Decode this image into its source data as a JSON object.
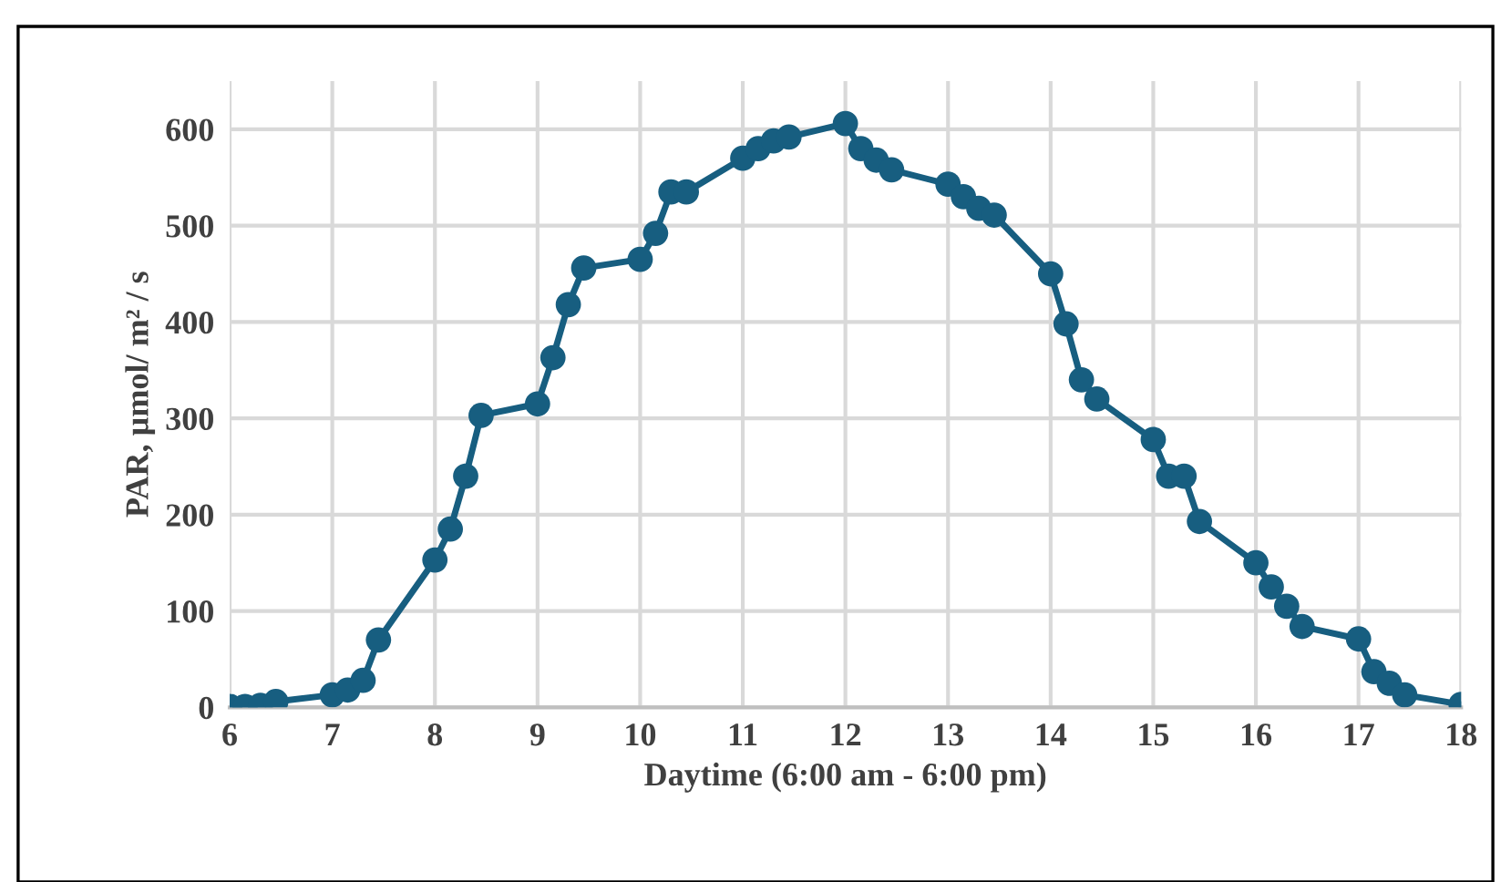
{
  "chart_data": {
    "type": "line",
    "xlabel": "Daytime (6:00 am - 6:00 pm)",
    "ylabel": "PAR, µmol/ m² / s",
    "series": [
      {
        "color": "#175e80",
        "x": [
          6,
          6.15,
          6.3,
          6.45,
          7,
          7.15,
          7.3,
          7.45,
          8,
          8.15,
          8.3,
          8.45,
          9,
          9.15,
          9.3,
          9.45,
          10,
          10.15,
          10.3,
          10.45,
          11,
          11.15,
          11.3,
          11.45,
          12,
          12.15,
          12.3,
          12.45,
          13,
          13.15,
          13.3,
          13.45,
          14,
          14.15,
          14.3,
          14.45,
          15,
          15.15,
          15.3,
          15.45,
          16,
          16.15,
          16.3,
          16.45,
          17,
          17.15,
          17.3,
          17.45,
          18
        ],
        "values": [
          1,
          1,
          2,
          6,
          13,
          18,
          28,
          70,
          153,
          185,
          240,
          303,
          315,
          363,
          418,
          456,
          465,
          492,
          535,
          535,
          570,
          580,
          588,
          592,
          606,
          580,
          568,
          558,
          543,
          530,
          518,
          511,
          450,
          398,
          340,
          320,
          278,
          240,
          240,
          193,
          150,
          125,
          105,
          84,
          71,
          37,
          25,
          13,
          3
        ]
      }
    ],
    "xlim": [
      6,
      18
    ],
    "xticks": [
      6,
      7,
      8,
      9,
      10,
      11,
      12,
      13,
      14,
      15,
      16,
      17,
      18
    ],
    "ylim": [
      0,
      650
    ],
    "yticks": [
      0,
      100,
      200,
      300,
      400,
      500,
      600
    ],
    "grid": true,
    "marker": "circle",
    "line_style": "solid",
    "legend": false
  }
}
